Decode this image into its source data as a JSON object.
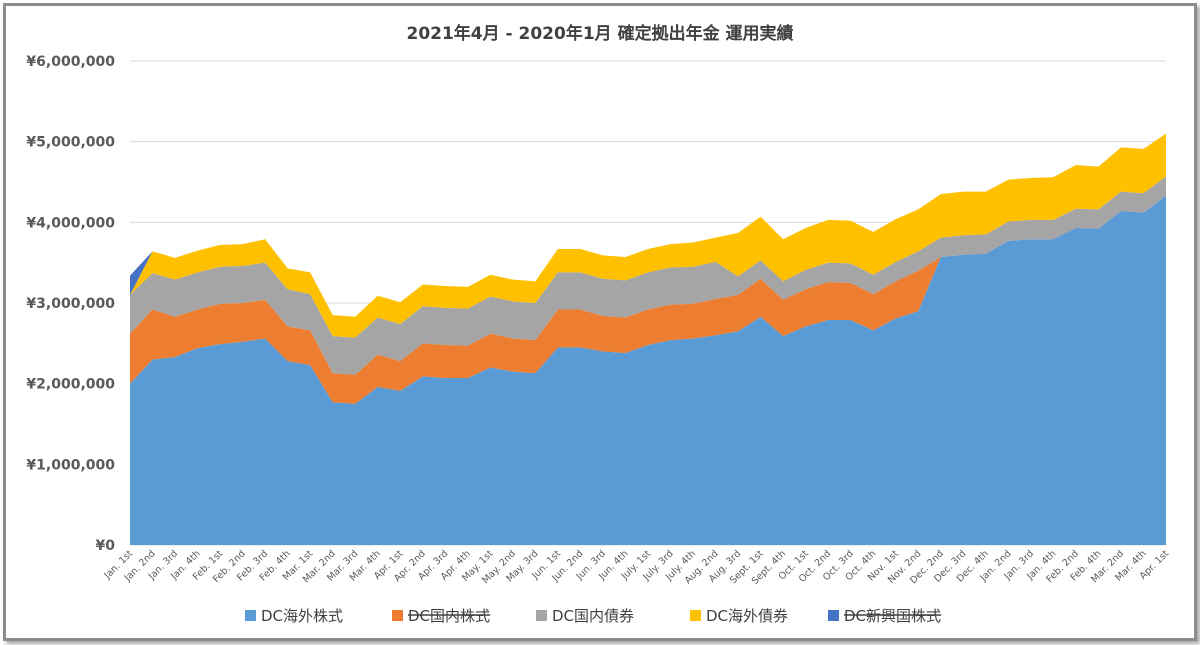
{
  "chart_data": {
    "type": "area",
    "stacked": true,
    "title": "2021年4月 - 2020年1月  確定拠出年金  運用実績",
    "xlabel": "",
    "ylabel": "",
    "ylim": [
      0,
      6000000
    ],
    "y_ticks": [
      "¥0",
      "¥1,000,000",
      "¥2,000,000",
      "¥3,000,000",
      "¥4,000,000",
      "¥5,000,000",
      "¥6,000,000"
    ],
    "grid": true,
    "legend_position": "bottom",
    "categories": [
      "Jan. 1st",
      "Jan. 2nd",
      "Jan. 3rd",
      "Jan. 4th",
      "Feb. 1st",
      "Feb. 2nd",
      "Feb. 3rd",
      "Feb. 4th",
      "Mar. 1st",
      "Mar. 2nd",
      "Mar. 3rd",
      "Mar. 4th",
      "Apr. 1st",
      "Apr. 2nd",
      "Apr. 3rd",
      "Apr. 4th",
      "May. 1st",
      "May. 2nd",
      "May. 3rd",
      "Jun. 1st",
      "Jun. 2nd",
      "Jun. 3rd",
      "Jun. 4th",
      "July. 1st",
      "July. 3rd",
      "July. 4th",
      "Aug. 2nd",
      "Aug. 3rd",
      "Sept. 1st",
      "Sept. 4th",
      "Oct. 1st",
      "Oct. 2nd",
      "Oct. 3rd",
      "Oct. 4th",
      "Nov. 1st",
      "Nov. 2nd",
      "Dec. 2nd",
      "Dec. 3rd",
      "Dec. 4th",
      "Jan. 2nd",
      "Jan. 3rd",
      "Jan. 4th",
      "Feb. 2nd",
      "Feb. 4th",
      "Mar. 2nd",
      "Mar. 4th",
      "Apr. 1st"
    ],
    "series": [
      {
        "name": "DC海外株式",
        "color": "#5b9bd5",
        "strikethrough": false,
        "values": [
          2000000,
          2300000,
          2330000,
          2440000,
          2490000,
          2520000,
          2560000,
          2280000,
          2230000,
          1770000,
          1750000,
          1960000,
          1910000,
          2090000,
          2070000,
          2070000,
          2200000,
          2150000,
          2130000,
          2450000,
          2450000,
          2400000,
          2380000,
          2480000,
          2540000,
          2560000,
          2600000,
          2650000,
          2830000,
          2590000,
          2710000,
          2790000,
          2790000,
          2660000,
          2810000,
          2900000,
          3570000,
          3600000,
          3610000,
          3770000,
          3790000,
          3790000,
          3930000,
          3920000,
          4140000,
          4120000,
          4330000
        ]
      },
      {
        "name": "DC国内株式",
        "color": "#ed7d31",
        "strikethrough": true,
        "values": [
          620000,
          620000,
          500000,
          480000,
          500000,
          480000,
          480000,
          430000,
          430000,
          360000,
          360000,
          400000,
          370000,
          410000,
          410000,
          400000,
          420000,
          410000,
          410000,
          470000,
          470000,
          440000,
          440000,
          440000,
          440000,
          430000,
          450000,
          450000,
          470000,
          450000,
          460000,
          470000,
          460000,
          450000,
          460000,
          500000,
          0,
          0,
          0,
          0,
          0,
          0,
          0,
          0,
          0,
          0,
          0
        ]
      },
      {
        "name": "DC国内債券",
        "color": "#a5a5a5",
        "strikethrough": false,
        "values": [
          480000,
          450000,
          460000,
          460000,
          460000,
          460000,
          460000,
          460000,
          450000,
          460000,
          460000,
          460000,
          460000,
          460000,
          460000,
          460000,
          460000,
          460000,
          460000,
          460000,
          460000,
          460000,
          460000,
          460000,
          460000,
          460000,
          460000,
          230000,
          230000,
          230000,
          240000,
          240000,
          240000,
          240000,
          240000,
          240000,
          240000,
          240000,
          240000,
          240000,
          240000,
          240000,
          240000,
          240000,
          240000,
          240000,
          240000
        ]
      },
      {
        "name": "DC海外債券",
        "color": "#ffc000",
        "strikethrough": false,
        "values": [
          0,
          270000,
          270000,
          270000,
          270000,
          270000,
          290000,
          260000,
          270000,
          260000,
          260000,
          270000,
          270000,
          270000,
          270000,
          270000,
          270000,
          270000,
          270000,
          290000,
          290000,
          290000,
          290000,
          290000,
          290000,
          300000,
          300000,
          540000,
          540000,
          520000,
          520000,
          530000,
          530000,
          530000,
          530000,
          520000,
          540000,
          540000,
          530000,
          520000,
          520000,
          530000,
          540000,
          530000,
          550000,
          550000,
          530000
        ]
      },
      {
        "name": "DC新興国株式",
        "color": "#4472c4",
        "strikethrough": true,
        "values": [
          240000,
          0,
          0,
          0,
          0,
          0,
          0,
          0,
          0,
          0,
          0,
          0,
          0,
          0,
          0,
          0,
          0,
          0,
          0,
          0,
          0,
          0,
          0,
          0,
          0,
          0,
          0,
          0,
          0,
          0,
          0,
          0,
          0,
          0,
          0,
          0,
          0,
          0,
          0,
          0,
          0,
          0,
          0,
          0,
          0,
          0,
          0
        ]
      }
    ]
  }
}
